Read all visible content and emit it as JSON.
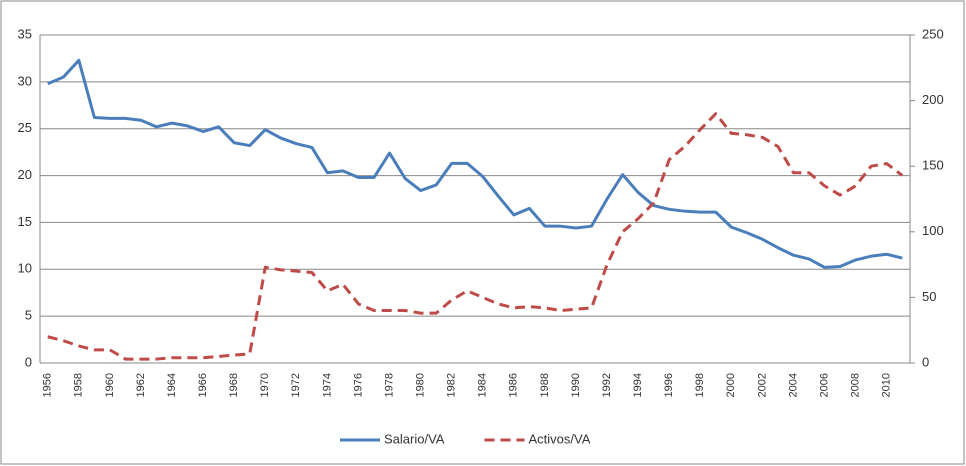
{
  "chart_data": {
    "type": "line",
    "categories": [
      "1956",
      null,
      "1958",
      null,
      "1960",
      null,
      "1962",
      null,
      "1964",
      null,
      "1966",
      null,
      "1968",
      null,
      "1970",
      null,
      "1972",
      null,
      "1974",
      null,
      "1976",
      null,
      "1978",
      null,
      "1980",
      null,
      "1982",
      null,
      "1984",
      null,
      "1986",
      null,
      "1988",
      null,
      "1990",
      null,
      "1992",
      null,
      "1994",
      null,
      "1996",
      null,
      "1998",
      null,
      "2000",
      null,
      "2002",
      null,
      "2004",
      null,
      "2006",
      null,
      "2008",
      null,
      "2010",
      null
    ],
    "series": [
      {
        "name": "Salario/VA",
        "color": "#4a7ebb",
        "style": "solid",
        "axis": "y",
        "values": [
          29.8,
          30.5,
          32.3,
          26.2,
          26.1,
          26.1,
          25.9,
          25.2,
          25.6,
          25.3,
          24.7,
          25.2,
          23.5,
          23.2,
          24.9,
          24.0,
          23.4,
          23.0,
          20.3,
          20.5,
          19.8,
          19.8,
          22.4,
          19.7,
          18.4,
          19.0,
          21.3,
          21.3,
          19.9,
          17.8,
          15.8,
          16.5,
          14.6,
          14.6,
          14.4,
          14.6,
          17.5,
          20.1,
          18.2,
          16.8,
          16.4,
          16.2,
          16.1,
          16.1,
          14.5,
          13.9,
          13.2,
          12.3,
          11.5,
          11.1,
          10.2,
          10.3,
          11.0,
          11.4,
          11.6,
          11.2
        ]
      },
      {
        "name": "Activos/VA",
        "color": "#be4b48",
        "style": "dashed",
        "axis": "y2",
        "values": [
          20,
          17,
          13,
          10,
          10,
          3,
          3,
          3,
          4,
          4,
          4,
          5,
          6,
          7,
          73,
          71,
          70,
          69,
          55,
          60,
          45,
          40,
          40,
          40,
          38,
          38,
          48,
          55,
          50,
          45,
          42,
          43,
          42,
          40,
          41,
          42,
          75,
          100,
          110,
          122,
          155,
          165,
          178,
          190,
          175,
          174,
          172,
          165,
          145,
          145,
          135,
          128,
          135,
          150,
          152,
          143
        ]
      }
    ],
    "ylim": [
      0,
      35
    ],
    "yticks": [
      0,
      5,
      10,
      15,
      20,
      25,
      30,
      35
    ],
    "y2lim": [
      0,
      250
    ],
    "y2ticks": [
      0,
      50,
      100,
      150,
      200,
      250
    ],
    "grid": true,
    "legend": "bottom"
  }
}
